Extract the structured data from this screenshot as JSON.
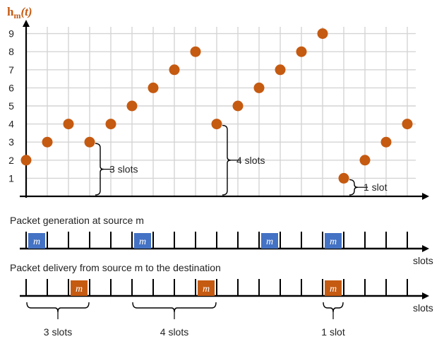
{
  "chart_data": {
    "type": "scatter",
    "title": "",
    "ylabel": "h_m(t)",
    "ylabel_main": "h",
    "ylabel_sub": "m",
    "ylabel_arg": "(t)",
    "y_ticks": [
      "1",
      "2",
      "3",
      "4",
      "5",
      "6",
      "7",
      "8",
      "9"
    ],
    "ylim": [
      0,
      9
    ],
    "xlim": [
      0,
      19
    ],
    "grid": true,
    "series": [
      {
        "points": [
          {
            "x": 0,
            "y": 2
          },
          {
            "x": 1,
            "y": 3
          },
          {
            "x": 2,
            "y": 4
          },
          {
            "x": 3,
            "y": 3
          },
          {
            "x": 4,
            "y": 4
          },
          {
            "x": 5,
            "y": 5
          },
          {
            "x": 6,
            "y": 6
          },
          {
            "x": 7,
            "y": 7
          },
          {
            "x": 8,
            "y": 8
          },
          {
            "x": 9,
            "y": 4
          },
          {
            "x": 10,
            "y": 5
          },
          {
            "x": 11,
            "y": 6
          },
          {
            "x": 12,
            "y": 7
          },
          {
            "x": 13,
            "y": 8
          },
          {
            "x": 14,
            "y": 9
          },
          {
            "x": 15,
            "y": 1
          },
          {
            "x": 16,
            "y": 2
          },
          {
            "x": 17,
            "y": 3
          },
          {
            "x": 18,
            "y": 4
          }
        ]
      }
    ],
    "chart_annotations": [
      {
        "text": "3 slots",
        "x": 3,
        "y_from": 0,
        "y_to": 3
      },
      {
        "text": "4 slots",
        "x": 9,
        "y_from": 0,
        "y_to": 4
      },
      {
        "text": "1 slot",
        "x": 15,
        "y_from": 0,
        "y_to": 1
      }
    ]
  },
  "timelines": [
    {
      "title": "Packet generation at source m",
      "axis_label": "slots",
      "ticks": 19,
      "packet_label": "m",
      "packet_color": "#4472c4",
      "packet_slots": [
        0,
        5,
        11,
        14
      ]
    },
    {
      "title": "Packet delivery from source m to the destination",
      "axis_label": "slots",
      "ticks": 19,
      "packet_label": "m",
      "packet_color": "#c55a11",
      "packet_slots": [
        2,
        8,
        14
      ]
    }
  ],
  "delay_braces": [
    {
      "text": "3 slots",
      "from_tick": 0,
      "to_tick": 3
    },
    {
      "text": "4 slots",
      "from_tick": 5,
      "to_tick": 9
    },
    {
      "text": "1 slot",
      "from_tick": 14,
      "to_tick": 15
    }
  ],
  "colors": {
    "marker": "#c55a11",
    "marker_y_label": "#c55a11",
    "grid": "#d4d4d4",
    "axis": "#000000"
  }
}
